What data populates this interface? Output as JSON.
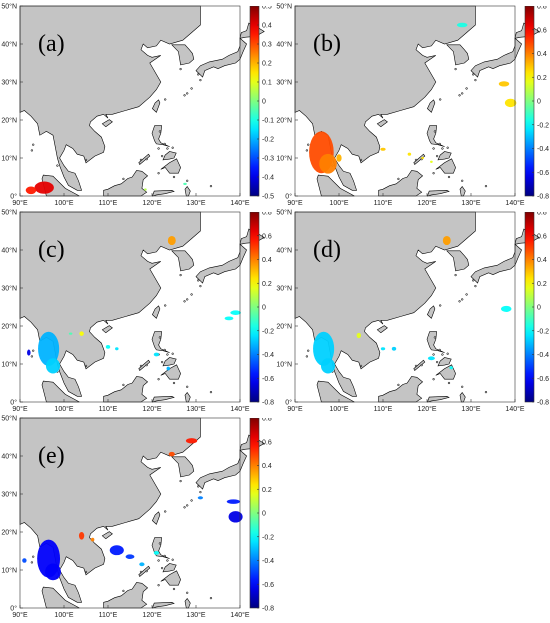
{
  "lat_ticks": [
    "0°",
    "10°N",
    "20°N",
    "30°N",
    "40°N",
    "50°N"
  ],
  "lon_ticks": [
    "90°E",
    "100°E",
    "110°E",
    "120°E",
    "130°E",
    "140°E"
  ],
  "panels": [
    {
      "label": "(a)",
      "cbar_ticks": [
        "0.5",
        "0.4",
        "0.3",
        "0.2",
        "0.1",
        "0",
        "-0.1",
        "-0.2",
        "-0.3",
        "-0.4",
        "-0.5"
      ],
      "vmin": -0.5,
      "vmax": 0.5
    },
    {
      "label": "(b)",
      "cbar_ticks": [
        "0.8",
        "0.6",
        "0.4",
        "0.2",
        "0",
        "-0.2",
        "-0.4",
        "-0.6",
        "-0.8"
      ],
      "vmin": -0.8,
      "vmax": 0.8
    },
    {
      "label": "(c)",
      "cbar_ticks": [
        "0.8",
        "0.6",
        "0.4",
        "0.2",
        "0",
        "-0.2",
        "-0.4",
        "-0.6",
        "-0.8"
      ],
      "vmin": -0.8,
      "vmax": 0.8
    },
    {
      "label": "(d)",
      "cbar_ticks": [
        "0.8",
        "0.6",
        "0.4",
        "0.2",
        "0",
        "-0.2",
        "-0.4",
        "-0.6",
        "-0.8"
      ],
      "vmin": -0.8,
      "vmax": 0.8
    },
    {
      "label": "(e)",
      "cbar_ticks": [
        "0.8",
        "0.6",
        "0.4",
        "0.2",
        "0",
        "-0.2",
        "-0.4",
        "-0.6",
        "-0.8"
      ],
      "vmin": -0.8,
      "vmax": 0.8
    }
  ],
  "colors": {
    "land": "#c4c4c4",
    "coast": "#000000",
    "ocean": "#ffffff"
  }
}
